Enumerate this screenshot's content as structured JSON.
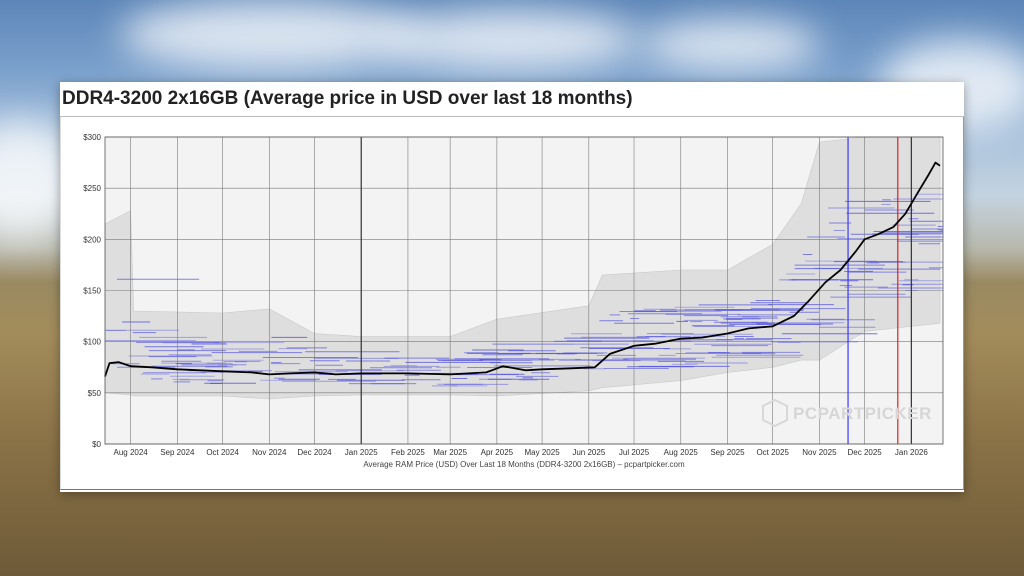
{
  "card": {
    "title": "DDR4-3200 2x16GB (Average price in USD over last 18 months)"
  },
  "watermark": {
    "text": "PCPARTPICKER",
    "icon": "pcpartpicker-logo-icon"
  },
  "colors": {
    "price_line": "#000000",
    "range_band": "#dedede",
    "listing_lines": "#4646e0",
    "blue_marker": "#3a3aff",
    "red_marker": "#e02020",
    "black_marker": "#333333",
    "plot_bg": "#f3f3f3",
    "grid": "#7a7a7a"
  },
  "chart_data": {
    "type": "line",
    "title": "DDR4-3200 2x16GB (Average price in USD over last 18 months)",
    "xlabel": "Average RAM Price (USD) Over Last 18 Months (DDR4-3200 2x16GB) – pcpartpicker.com",
    "ylabel": "",
    "ylim": [
      0,
      300
    ],
    "y_ticks": [
      "$0",
      "$50",
      "$100",
      "$150",
      "$200",
      "$250",
      "$300"
    ],
    "x_ticks": [
      "Aug 2024",
      "Sep 2024",
      "Oct 2024",
      "Nov 2024",
      "Dec 2024",
      "Jan 2025",
      "Feb 2025",
      "Mar 2025",
      "Apr 2025",
      "May 2025",
      "Jun 2025",
      "Jul 2025",
      "Aug 2025",
      "Sep 2025",
      "Oct 2025",
      "Nov 2025",
      "Dec 2025",
      "Jan 2026"
    ],
    "grid": true,
    "legend": "none",
    "series": [
      {
        "values": [
          {
            "x": "2024-07-15",
            "y": 66
          },
          {
            "x": "2024-07-18",
            "y": 79
          },
          {
            "x": "2024-07-24",
            "y": 80
          },
          {
            "x": "2024-08-01",
            "y": 76
          },
          {
            "x": "2024-08-15",
            "y": 75
          },
          {
            "x": "2024-09-01",
            "y": 73
          },
          {
            "x": "2024-10-01",
            "y": 71
          },
          {
            "x": "2024-10-20",
            "y": 70
          },
          {
            "x": "2024-11-01",
            "y": 68
          },
          {
            "x": "2024-11-15",
            "y": 69
          },
          {
            "x": "2024-12-01",
            "y": 70
          },
          {
            "x": "2024-12-15",
            "y": 68
          },
          {
            "x": "2025-01-01",
            "y": 69
          },
          {
            "x": "2025-02-01",
            "y": 69
          },
          {
            "x": "2025-03-01",
            "y": 68
          },
          {
            "x": "2025-03-25",
            "y": 70
          },
          {
            "x": "2025-04-05",
            "y": 76
          },
          {
            "x": "2025-04-20",
            "y": 72
          },
          {
            "x": "2025-05-01",
            "y": 73
          },
          {
            "x": "2025-05-20",
            "y": 74
          },
          {
            "x": "2025-06-05",
            "y": 75
          },
          {
            "x": "2025-06-15",
            "y": 88
          },
          {
            "x": "2025-07-01",
            "y": 96
          },
          {
            "x": "2025-07-15",
            "y": 98
          },
          {
            "x": "2025-08-01",
            "y": 103
          },
          {
            "x": "2025-08-15",
            "y": 104
          },
          {
            "x": "2025-09-01",
            "y": 108
          },
          {
            "x": "2025-09-15",
            "y": 113
          },
          {
            "x": "2025-10-01",
            "y": 115
          },
          {
            "x": "2025-10-15",
            "y": 125
          },
          {
            "x": "2025-10-25",
            "y": 140
          },
          {
            "x": "2025-11-05",
            "y": 158
          },
          {
            "x": "2025-11-15",
            "y": 170
          },
          {
            "x": "2025-11-25",
            "y": 188
          },
          {
            "x": "2025-12-01",
            "y": 200
          },
          {
            "x": "2025-12-10",
            "y": 205
          },
          {
            "x": "2025-12-20",
            "y": 212
          },
          {
            "x": "2025-12-28",
            "y": 225
          },
          {
            "x": "2026-01-05",
            "y": 245
          },
          {
            "x": "2026-01-12",
            "y": 262
          },
          {
            "x": "2026-01-17",
            "y": 275
          },
          {
            "x": "2026-01-20",
            "y": 272
          }
        ]
      }
    ],
    "range_band": [
      {
        "x": "2024-07-15",
        "low": 50,
        "high": 215
      },
      {
        "x": "2024-08-01",
        "low": 48,
        "high": 228
      },
      {
        "x": "2024-08-03",
        "low": 47,
        "high": 130
      },
      {
        "x": "2024-10-01",
        "low": 47,
        "high": 128
      },
      {
        "x": "2024-11-01",
        "low": 44,
        "high": 132
      },
      {
        "x": "2024-12-01",
        "low": 47,
        "high": 108
      },
      {
        "x": "2025-01-01",
        "low": 48,
        "high": 105
      },
      {
        "x": "2025-03-01",
        "low": 48,
        "high": 105
      },
      {
        "x": "2025-04-01",
        "low": 47,
        "high": 122
      },
      {
        "x": "2025-06-01",
        "low": 52,
        "high": 135
      },
      {
        "x": "2025-06-10",
        "low": 55,
        "high": 165
      },
      {
        "x": "2025-08-01",
        "low": 62,
        "high": 170
      },
      {
        "x": "2025-09-01",
        "low": 70,
        "high": 170
      },
      {
        "x": "2025-10-01",
        "low": 75,
        "high": 195
      },
      {
        "x": "2025-10-20",
        "low": 82,
        "high": 235
      },
      {
        "x": "2025-11-01",
        "low": 82,
        "high": 295
      },
      {
        "x": "2025-12-01",
        "low": 110,
        "high": 300
      },
      {
        "x": "2026-01-20",
        "low": 118,
        "high": 300
      }
    ],
    "markers": [
      {
        "x": "2025-01-01",
        "color": "black"
      },
      {
        "x": "2025-11-20",
        "color": "blue"
      },
      {
        "x": "2025-12-23",
        "color": "red"
      },
      {
        "x": "2026-01-01",
        "color": "black"
      }
    ]
  }
}
